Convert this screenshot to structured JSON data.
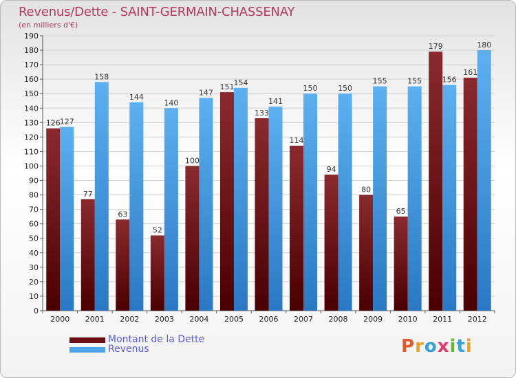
{
  "title": "Revenus/Dette - SAINT-GERMAIN-CHASSENAY",
  "subtitle": "(en milliers d'€)",
  "logo_text": "Proxiti",
  "colors": {
    "dette": "#7a1f24",
    "dette_dark": "#4a0000",
    "revenus": "#55a8ea",
    "revenus_dark": "#2a78c4",
    "title": "#b03a62",
    "legend_text": "#5a5adc"
  },
  "chart_data": {
    "type": "bar",
    "title": "Revenus/Dette - SAINT-GERMAIN-CHASSENAY",
    "subtitle": "(en milliers d'€)",
    "categories": [
      "2000",
      "2001",
      "2002",
      "2003",
      "2004",
      "2005",
      "2006",
      "2007",
      "2008",
      "2009",
      "2010",
      "2011",
      "2012"
    ],
    "series": [
      {
        "name": "Montant de la Dette",
        "values": [
          126,
          77,
          63,
          52,
          100,
          151,
          133,
          114,
          94,
          80,
          65,
          179,
          161
        ]
      },
      {
        "name": "Revenus",
        "values": [
          127,
          158,
          144,
          140,
          147,
          154,
          141,
          150,
          150,
          155,
          155,
          156,
          180
        ]
      }
    ],
    "ylim": [
      0,
      190
    ],
    "ytick_step": 10,
    "grid": true,
    "legend_position": "bottom-left"
  }
}
